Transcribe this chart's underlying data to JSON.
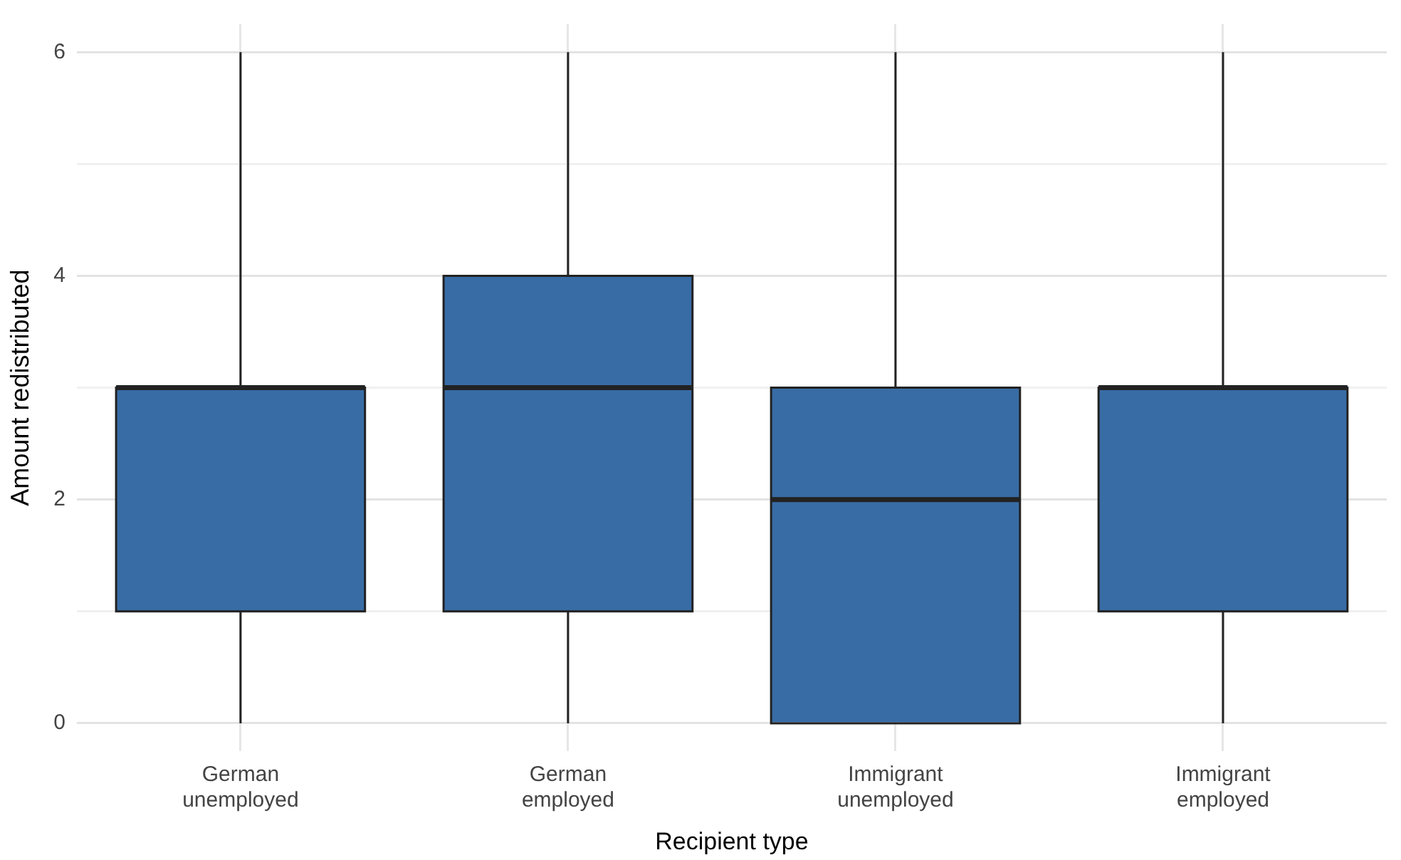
{
  "chart_data": {
    "type": "box",
    "xlabel": "Recipient type",
    "ylabel": "Amount redistributed",
    "categories": [
      "German unemployed",
      "German employed",
      "Immigrant unemployed",
      "Immigrant employed"
    ],
    "color": "#386ca5",
    "boxes": [
      {
        "low": 0,
        "q1": 1,
        "median": 3,
        "q3": 3,
        "high": 6
      },
      {
        "low": 0,
        "q1": 1,
        "median": 3,
        "q3": 4,
        "high": 6
      },
      {
        "low": 0,
        "q1": 0,
        "median": 2,
        "q3": 3,
        "high": 6
      },
      {
        "low": 0,
        "q1": 1,
        "median": 3,
        "q3": 3,
        "high": 6
      }
    ],
    "ylim": [
      -0.25,
      6.25
    ],
    "yticks": [
      0,
      {
        "value": 1,
        "label": null
      },
      2,
      {
        "value": 3,
        "label": null
      },
      4,
      {
        "value": 5,
        "label": null
      },
      6
    ],
    "grid": true,
    "legend": false
  }
}
